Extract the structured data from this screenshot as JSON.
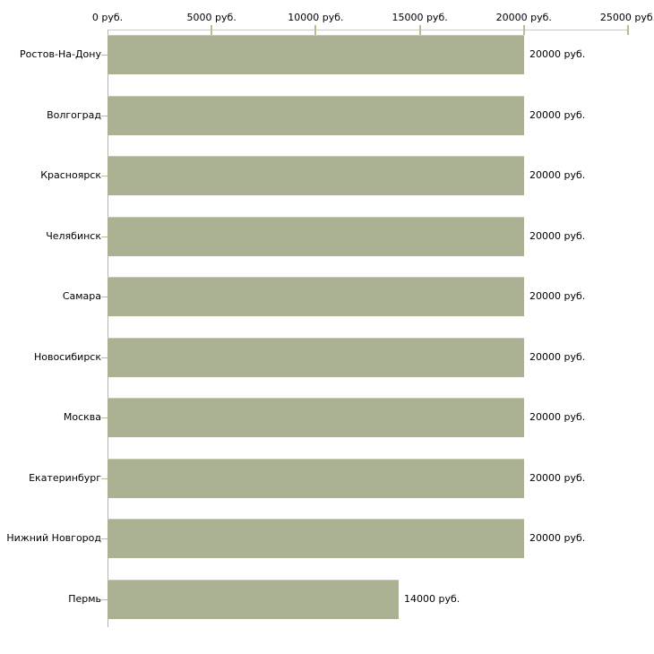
{
  "chart_data": {
    "type": "bar",
    "orientation": "horizontal",
    "title": "",
    "unit": "руб.",
    "axis_position": "top",
    "grid": "off",
    "legend": "none",
    "xlim": [
      0,
      25000
    ],
    "x_ticks": [
      {
        "value": 0,
        "label": "0 руб."
      },
      {
        "value": 5000,
        "label": "5000 руб."
      },
      {
        "value": 10000,
        "label": "10000 руб."
      },
      {
        "value": 15000,
        "label": "15000 руб."
      },
      {
        "value": 20000,
        "label": "20000 руб."
      },
      {
        "value": 25000,
        "label": "25000 руб."
      }
    ],
    "categories": [
      "Ростов-На-Дону",
      "Волгоград",
      "Красноярск",
      "Челябинск",
      "Самара",
      "Новосибирск",
      "Москва",
      "Екатеринбург",
      "Нижний Новгород",
      "Пермь"
    ],
    "values": [
      20000,
      20000,
      20000,
      20000,
      20000,
      20000,
      20000,
      20000,
      20000,
      14000
    ],
    "value_labels": [
      "20000 руб.",
      "20000 руб.",
      "20000 руб.",
      "20000 руб.",
      "20000 руб.",
      "20000 руб.",
      "20000 руб.",
      "20000 руб.",
      "20000 руб.",
      "14000 руб."
    ],
    "colors": {
      "bar": "#abb294",
      "bar_top_edge": "#c5cab2",
      "x_axis_line": "#c9c9c9",
      "y_axis_line": "#b3b3b3",
      "tick_mark": "#b9bd92",
      "text": "#000000",
      "background": "#ffffff"
    }
  }
}
